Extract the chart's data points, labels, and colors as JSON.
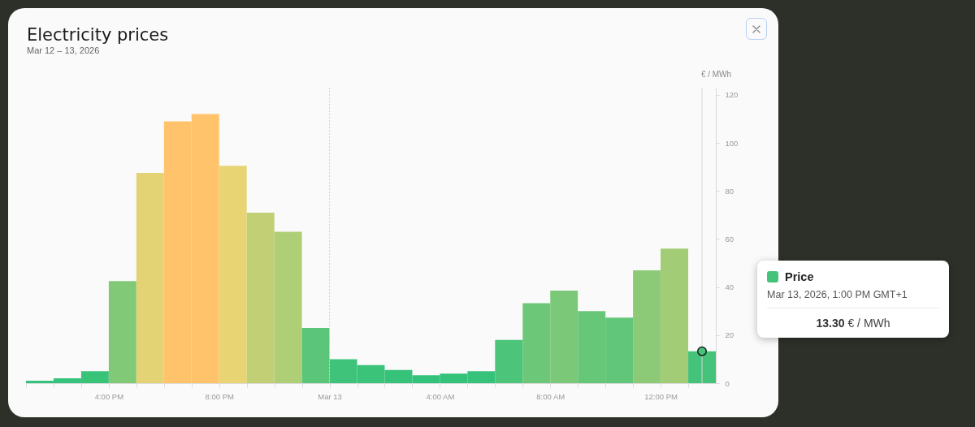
{
  "chart_data": {
    "type": "bar",
    "title": "Electricity prices",
    "subtitle": "Mar 12 – 13, 2026",
    "ylabel": "€ / MWh",
    "x": [
      "2026-03-12T13:30",
      "2026-03-12T14:30",
      "2026-03-12T15:30",
      "2026-03-12T16:30",
      "2026-03-12T17:30",
      "2026-03-12T18:30",
      "2026-03-12T19:30",
      "2026-03-12T20:30",
      "2026-03-12T21:30",
      "2026-03-12T22:30",
      "2026-03-12T23:30",
      "2026-03-13T00:30",
      "2026-03-13T01:30",
      "2026-03-13T02:30",
      "2026-03-13T03:30",
      "2026-03-13T04:30",
      "2026-03-13T05:30",
      "2026-03-13T06:30",
      "2026-03-13T07:30",
      "2026-03-13T08:30",
      "2026-03-13T09:30",
      "2026-03-13T10:30",
      "2026-03-13T11:30",
      "2026-03-13T12:30",
      "2026-03-13T13:30"
    ],
    "series": [
      {
        "values": [
          1,
          2,
          5,
          42.5,
          87.5,
          109,
          112,
          90.5,
          71,
          63,
          23,
          10,
          7.5,
          5.5,
          3.3,
          4,
          5,
          18,
          33.3,
          38.5,
          30,
          27.3,
          47,
          56,
          13.3
        ],
        "colors": [
          "#33c27b",
          "#35c27a",
          "#38c379",
          "#82c977",
          "#e4d374",
          "#ffc46b",
          "#ffc46b",
          "#e8d473",
          "#c2cf75",
          "#afcf77",
          "#5bc579",
          "#3fc37a",
          "#3bc37a",
          "#37c27a",
          "#33c27b",
          "#34c27b",
          "#36c27a",
          "#4cc47a",
          "#6dc779",
          "#7bc878",
          "#67c779",
          "#61c67a",
          "#8cca77",
          "#a2cc76",
          "#45c37a"
        ]
      },
      {
        "type": "scatter",
        "x": [
          "2026-03-13T13:30"
        ],
        "values": [
          13.3
        ],
        "color": "#45c37a",
        "marker": "circle"
      }
    ],
    "xlim": [
      "2026-03-12T13:00",
      "2026-03-13T14:00"
    ],
    "xticks": [
      {
        "value": "2026-03-12T13:00",
        "label": null
      },
      {
        "value": "2026-03-12T14:00",
        "label": null
      },
      {
        "value": "2026-03-12T15:00",
        "label": null
      },
      {
        "value": "2026-03-12T16:00",
        "label": "4:00 PM"
      },
      {
        "value": "2026-03-12T17:00",
        "label": null
      },
      {
        "value": "2026-03-12T18:00",
        "label": null
      },
      {
        "value": "2026-03-12T19:00",
        "label": null
      },
      {
        "value": "2026-03-12T20:00",
        "label": "8:00 PM"
      },
      {
        "value": "2026-03-12T21:00",
        "label": null
      },
      {
        "value": "2026-03-12T22:00",
        "label": null
      },
      {
        "value": "2026-03-12T23:00",
        "label": null
      },
      {
        "value": "2026-03-13T00:00",
        "label": "Mar 13"
      },
      {
        "value": "2026-03-13T01:00",
        "label": null
      },
      {
        "value": "2026-03-13T02:00",
        "label": null
      },
      {
        "value": "2026-03-13T03:00",
        "label": null
      },
      {
        "value": "2026-03-13T04:00",
        "label": "4:00 AM"
      },
      {
        "value": "2026-03-13T05:00",
        "label": null
      },
      {
        "value": "2026-03-13T06:00",
        "label": null
      },
      {
        "value": "2026-03-13T07:00",
        "label": null
      },
      {
        "value": "2026-03-13T08:00",
        "label": "8:00 AM"
      },
      {
        "value": "2026-03-13T09:00",
        "label": null
      },
      {
        "value": "2026-03-13T10:00",
        "label": null
      },
      {
        "value": "2026-03-13T11:00",
        "label": null
      },
      {
        "value": "2026-03-13T12:00",
        "label": "12:00 PM"
      },
      {
        "value": "2026-03-13T13:00",
        "label": null
      }
    ],
    "ylim": [
      0,
      123
    ],
    "yticks": [
      0,
      20,
      40,
      60,
      80,
      100,
      120
    ],
    "ref_lines": [
      {
        "axis": "x",
        "value": "2026-03-13T00:00",
        "line_style": "dashed",
        "color": "#cfcfcf"
      },
      {
        "axis": "x",
        "value": "2026-03-13T13:30",
        "color": "#d6d6d6"
      }
    ],
    "annotations": [
      "Price",
      "Mar 13, 2026, 1:00 PM GMT+1",
      "13.30 € / MWh"
    ]
  }
}
